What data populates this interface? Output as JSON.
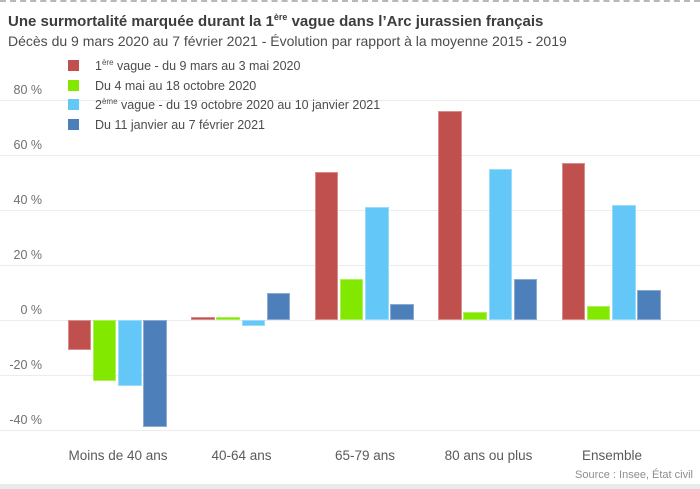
{
  "title": {
    "pre": "Une surmortalité marquée durant la 1",
    "sup": "ère",
    "post": " vague dans l’Arc jurassien français"
  },
  "subtitle": "Décès du 9 mars 2020 au 7 février 2021 - Évolution par rapport à la moyenne 2015 - 2019",
  "legend": {
    "items": [
      {
        "pre": "1",
        "sup": "ère",
        "post": " vague - du 9 mars au 3 mai 2020",
        "color": "#c0504d"
      },
      {
        "pre": "",
        "sup": "",
        "post": "Du 4 mai au 18 octobre 2020",
        "color": "#82e800"
      },
      {
        "pre": "2",
        "sup": "ème",
        "post": " vague - du 19 octobre 2020 au 10 janvier 2021",
        "color": "#63c8f8"
      },
      {
        "pre": "",
        "sup": "",
        "post": "Du 11 janvier au 7 février 2021",
        "color": "#4d7fba"
      }
    ]
  },
  "source": "Source : Insee, État civil",
  "colors": {
    "red": "#c0504d",
    "green": "#82e800",
    "light_blue": "#63c8f8",
    "dark_blue": "#4d7fba",
    "gridline": "#ececec",
    "bottom_strip": "#e7eaed"
  },
  "chart_data": {
    "type": "bar",
    "title": "Une surmortalité marquée durant la 1ère vague dans l’Arc jurassien français",
    "subtitle": "Décès du 9 mars 2020 au 7 février 2021 - Évolution par rapport à la moyenne 2015 - 2019",
    "categories": [
      "Moins de 40 ans",
      "40-64 ans",
      "65-79 ans",
      "80 ans ou plus",
      "Ensemble"
    ],
    "series": [
      {
        "name": "1ère vague - du 9 mars au 3 mai 2020",
        "color": "#c0504d",
        "values": [
          -11,
          1,
          54,
          76,
          57
        ]
      },
      {
        "name": "Du 4 mai au 18 octobre 2020",
        "color": "#82e800",
        "values": [
          -22,
          1,
          15,
          3,
          5
        ]
      },
      {
        "name": "2ème vague - du 19 octobre 2020 au 10 janvier 2021",
        "color": "#63c8f8",
        "values": [
          -24,
          -2,
          41,
          55,
          42
        ]
      },
      {
        "name": "Du 11 janvier au 7 février 2021",
        "color": "#4d7fba",
        "values": [
          -39,
          10,
          6,
          15,
          11
        ]
      }
    ],
    "unit": "%",
    "yticks": [
      80,
      60,
      40,
      20,
      0,
      -20,
      -40
    ],
    "ylim": [
      -44,
      84
    ],
    "grid": true,
    "legend_position": "top-left",
    "source": "Source : Insee, État civil"
  }
}
